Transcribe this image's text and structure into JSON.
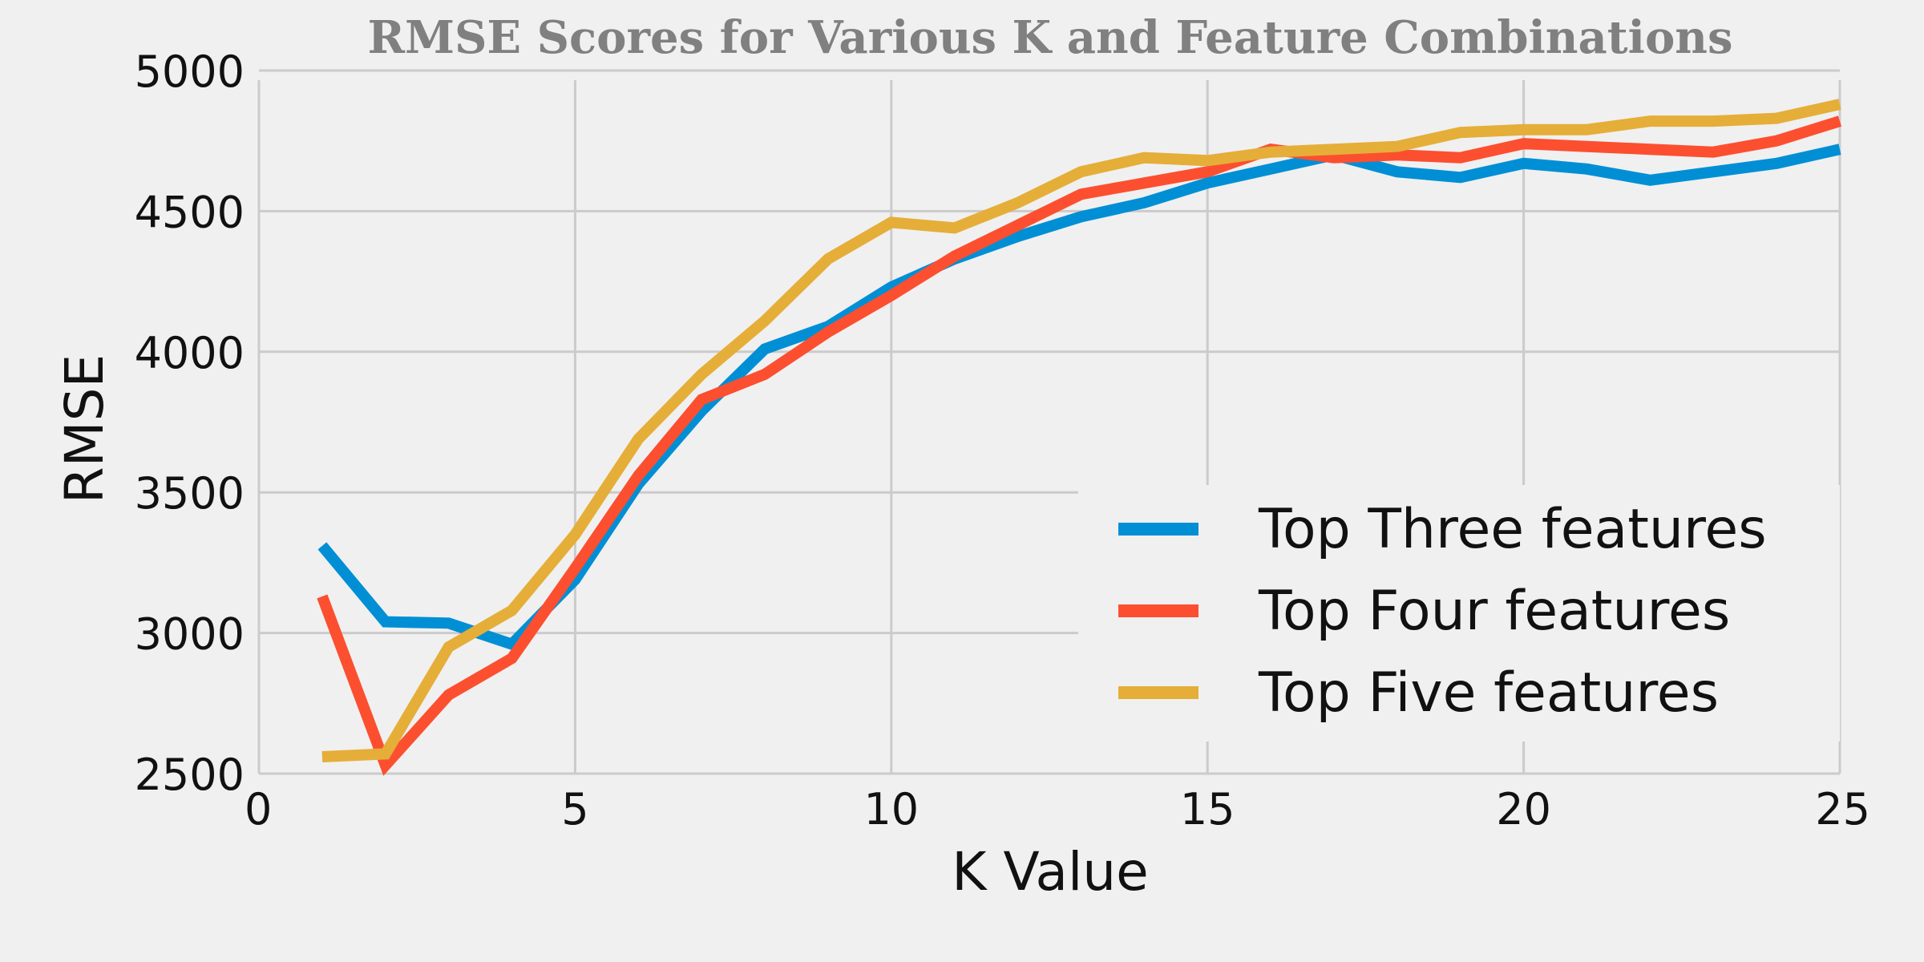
{
  "chart_data": {
    "type": "line",
    "title": "RMSE Scores for Various K and Feature Combinations",
    "xlabel": "K Value",
    "ylabel": "RMSE",
    "xlim": [
      0,
      25
    ],
    "ylim": [
      2500,
      5000
    ],
    "xticks": [
      "0",
      "5",
      "10",
      "15",
      "20",
      "25"
    ],
    "yticks": [
      "2500",
      "3000",
      "3500",
      "4000",
      "4500",
      "5000"
    ],
    "grid": true,
    "legend_position": "lower-right",
    "x": [
      1,
      2,
      3,
      4,
      5,
      6,
      7,
      8,
      9,
      10,
      11,
      12,
      13,
      14,
      15,
      16,
      17,
      18,
      19,
      20,
      21,
      22,
      23,
      24,
      25
    ],
    "series": [
      {
        "name": "Top Three features",
        "color": "#008fd5",
        "values": [
          3310,
          3040,
          3035,
          2960,
          3190,
          3530,
          3790,
          4010,
          4090,
          4230,
          4330,
          4410,
          4480,
          4530,
          4600,
          4650,
          4700,
          4640,
          4620,
          4670,
          4650,
          4610,
          4640,
          4670,
          4720
        ]
      },
      {
        "name": "Top Four features",
        "color": "#fc4f30",
        "values": [
          3130,
          2530,
          2780,
          2910,
          3230,
          3560,
          3830,
          3920,
          4070,
          4200,
          4340,
          4450,
          4560,
          4600,
          4640,
          4720,
          4690,
          4700,
          4690,
          4740,
          4730,
          4720,
          4710,
          4750,
          4820
        ]
      },
      {
        "name": "Top Five features",
        "color": "#e5ae38",
        "values": [
          2560,
          2570,
          2950,
          3080,
          3350,
          3690,
          3920,
          4110,
          4330,
          4460,
          4440,
          4530,
          4640,
          4690,
          4680,
          4710,
          4720,
          4730,
          4780,
          4790,
          4790,
          4820,
          4820,
          4830,
          4880
        ]
      }
    ]
  }
}
